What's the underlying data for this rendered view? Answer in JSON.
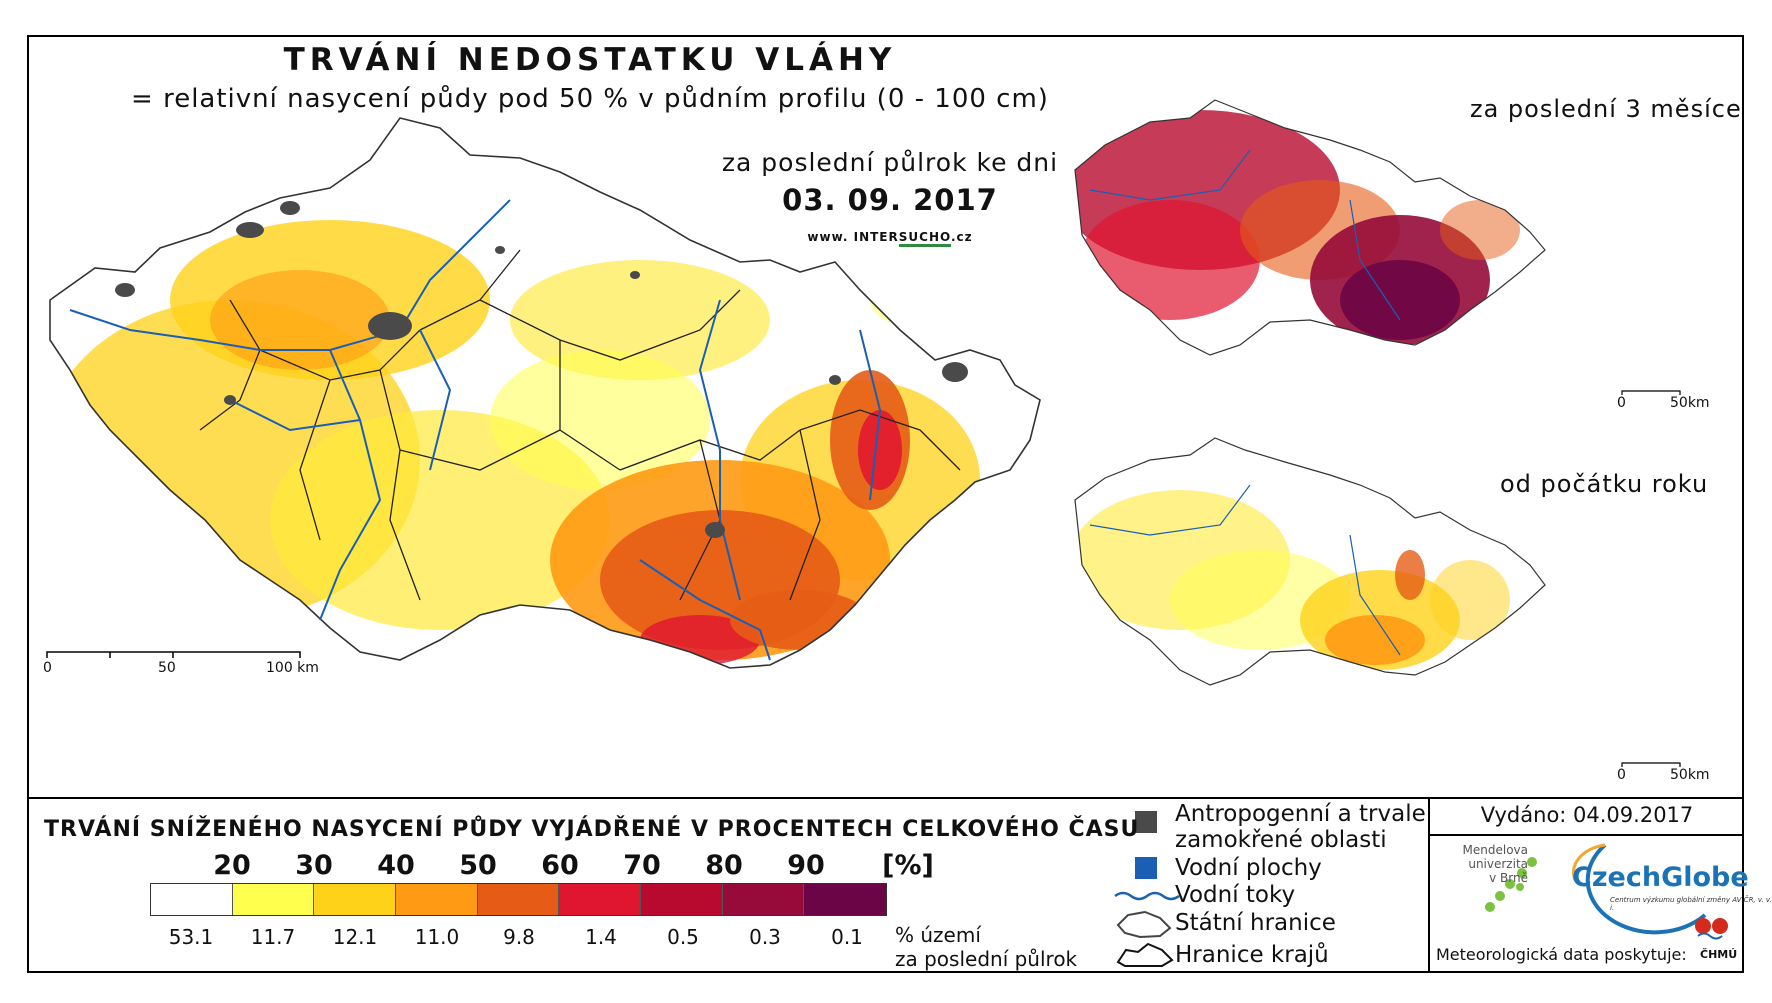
{
  "map": {
    "title": "TRVÁNÍ NEDOSTATKU VLÁHY",
    "subtitle": "= relativní nasycení půdy pod 50 % v půdním profilu (0 - 100 cm)",
    "period": "za poslední půlrok ke dni",
    "date": "03. 09. 2017",
    "url_prefix": "www. INTER",
    "url_highlight": "SUCHO",
    "url_suffix": ".cz",
    "scale": {
      "labels": [
        "0",
        "50",
        "100 km"
      ]
    }
  },
  "insets": [
    {
      "title": "za poslední 3 měsíce",
      "scale": [
        "0",
        "50km"
      ]
    },
    {
      "title": "od počátku roku",
      "scale": [
        "0",
        "50km"
      ]
    }
  ],
  "legend": {
    "title": "TRVÁNÍ SNÍŽENÉHO NASYCENÍ PŮDY VYJÁDŘENÉ V PROCENTECH CELKOVÉHO ČASU",
    "ticks": [
      "20",
      "30",
      "40",
      "50",
      "60",
      "70",
      "80",
      "90",
      "[%]"
    ],
    "colors": [
      "#ffffff",
      "#ffff4d",
      "#ffd21a",
      "#ff9a14",
      "#e65c16",
      "#e01530",
      "#b80a2e",
      "#960b3a",
      "#6b0545"
    ],
    "shares": [
      "53.1",
      "11.7",
      "12.1",
      "11.0",
      "9.8",
      "1.4",
      "0.5",
      "0.3",
      "0.1"
    ],
    "share_label_line1": "% území",
    "share_label_line2": "za poslední půlrok"
  },
  "symbols": {
    "anthropogenic_line1": "Antropogenní a trvale",
    "anthropogenic_line2": "zamokřené oblasti",
    "water_bodies": "Vodní plochy",
    "rivers": "Vodní toky",
    "state_border": "Státní hranice",
    "region_border": "Hranice krajů",
    "anthropogenic_color": "#4a4a4a",
    "water_color": "#1a5fb4"
  },
  "footer": {
    "issued": "Vydáno: 04.09.2017",
    "mendel": "Mendelova\nuniverzita\nv Brně",
    "czechglobe": "CzechGlobe",
    "czechglobe_sub": "Centrum výzkumu globální změny AV ČR, v. v. i.",
    "meteo": "Meteorologická data poskytuje:",
    "chmu": "ČHMÚ"
  }
}
